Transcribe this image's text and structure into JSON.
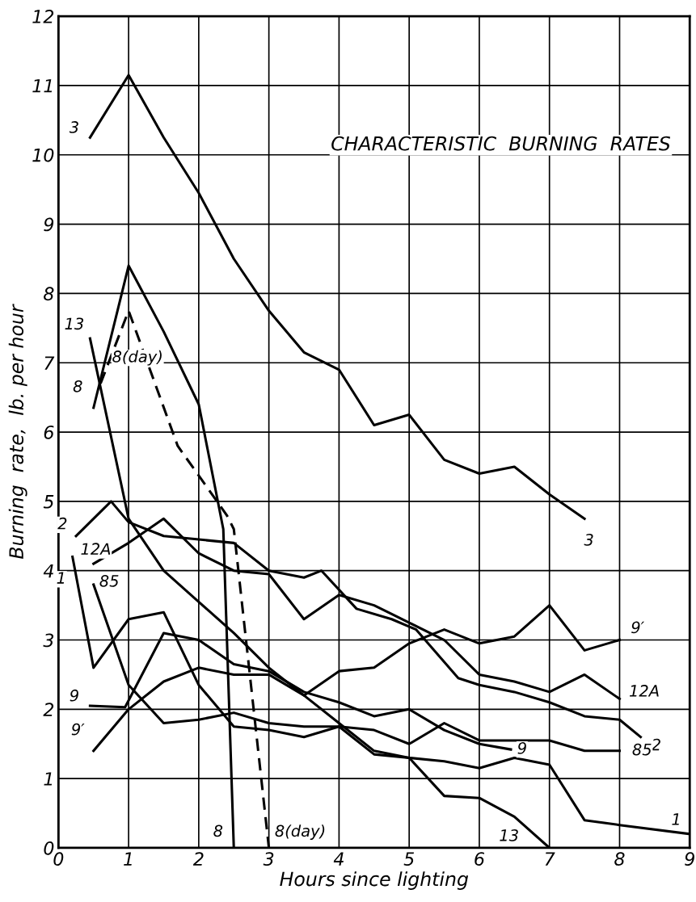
{
  "chart_data": {
    "type": "line",
    "title": "CHARACTERISTIC  BURNING  RATES",
    "xlabel": "Hours since lighting",
    "ylabel": "Burning  rate,  lb. per hour",
    "xlim": [
      0,
      9
    ],
    "ylim": [
      0,
      12
    ],
    "xticks": [
      0,
      1,
      2,
      3,
      4,
      5,
      6,
      7,
      8,
      9
    ],
    "yticks": [
      0,
      1,
      2,
      3,
      4,
      5,
      6,
      7,
      8,
      9,
      10,
      11,
      12
    ],
    "grid": true,
    "marker": "none",
    "series": [
      {
        "name": "3",
        "color": "#000000",
        "line_style": "solid",
        "x": [
          0.45,
          1,
          1.5,
          2,
          2.5,
          3,
          3.5,
          4,
          4.5,
          5,
          5.5,
          6,
          6.5,
          7,
          7.5
        ],
        "values": [
          10.25,
          11.15,
          10.25,
          9.45,
          8.5,
          7.75,
          7.15,
          6.9,
          6.1,
          6.25,
          5.6,
          5.4,
          5.5,
          5.1,
          4.75
        ]
      },
      {
        "name": "8",
        "color": "#000000",
        "line_style": "solid",
        "x": [
          0.5,
          1,
          1.5,
          2,
          2.35,
          2.5
        ],
        "values": [
          6.35,
          8.4,
          7.45,
          6.4,
          4.6,
          0
        ]
      },
      {
        "name": "8(day)",
        "color": "#000000",
        "line_style": "dashed",
        "x": [
          0.6,
          1,
          1.7,
          2.4,
          2.5,
          3
        ],
        "values": [
          6.7,
          7.75,
          5.8,
          4.8,
          4.6,
          0
        ]
      },
      {
        "name": "13",
        "color": "#000000",
        "line_style": "solid",
        "x": [
          0.45,
          1,
          1.5,
          2,
          2.5,
          3,
          3.5,
          4,
          4.5,
          5,
          5.5,
          6,
          6.5,
          7
        ],
        "values": [
          7.35,
          4.75,
          4.0,
          3.55,
          3.1,
          2.6,
          2.2,
          1.8,
          1.4,
          1.3,
          0.75,
          0.72,
          0.45,
          0
        ]
      },
      {
        "name": "2",
        "color": "#000000",
        "line_style": "solid",
        "x": [
          0.25,
          0.75,
          1,
          1.5,
          2,
          2.5,
          3,
          3.5,
          3.75,
          4.25,
          4.75,
          5.1,
          5.7,
          6,
          6.5,
          7,
          7.5,
          8,
          8.3
        ],
        "values": [
          4.5,
          5.0,
          4.7,
          4.5,
          4.45,
          4.4,
          4.0,
          3.9,
          4.0,
          3.45,
          3.3,
          3.15,
          2.45,
          2.35,
          2.25,
          2.1,
          1.9,
          1.85,
          1.6
        ]
      },
      {
        "name": "12A",
        "color": "#000000",
        "line_style": "solid",
        "x": [
          0.5,
          1,
          1.5,
          2,
          2.5,
          3,
          3.5,
          4,
          4.5,
          5,
          5.5,
          6,
          6.5,
          7,
          7.5,
          8
        ],
        "values": [
          4.1,
          4.4,
          4.75,
          4.25,
          4.0,
          3.95,
          3.3,
          3.65,
          3.5,
          3.25,
          3.0,
          2.5,
          2.4,
          2.25,
          2.5,
          2.15
        ]
      },
      {
        "name": "1",
        "color": "#000000",
        "line_style": "solid",
        "x": [
          0.2,
          0.5,
          1,
          1.5,
          2,
          2.5,
          3,
          3.5,
          4,
          4.5,
          5,
          5.5,
          6,
          6.5,
          7,
          7.5,
          8,
          9
        ],
        "values": [
          4.2,
          2.6,
          3.3,
          3.4,
          2.35,
          1.75,
          1.7,
          1.6,
          1.75,
          1.35,
          1.3,
          1.25,
          1.15,
          1.3,
          1.2,
          0.4,
          0.33,
          0.2
        ]
      },
      {
        "name": "85",
        "color": "#000000",
        "line_style": "solid",
        "x": [
          0.5,
          1,
          1.5,
          2,
          2.5,
          3,
          3.5,
          4,
          4.5,
          5,
          5.5,
          6,
          6.5,
          7,
          7.5,
          8
        ],
        "values": [
          3.8,
          2.35,
          1.8,
          1.85,
          1.95,
          1.8,
          1.75,
          1.75,
          1.7,
          1.5,
          1.8,
          1.55,
          1.55,
          1.55,
          1.4,
          1.4
        ]
      },
      {
        "name": "9",
        "color": "#000000",
        "line_style": "solid",
        "x": [
          0.45,
          0.95,
          1.5,
          2,
          2.5,
          3,
          3.5,
          4,
          4.5,
          5,
          5.5,
          6,
          6.45
        ],
        "values": [
          2.05,
          2.03,
          3.1,
          3.0,
          2.65,
          2.55,
          2.25,
          2.1,
          1.9,
          2.0,
          1.7,
          1.5,
          1.42
        ]
      },
      {
        "name": "9′",
        "color": "#000000",
        "line_style": "solid",
        "x": [
          0.5,
          1,
          1.5,
          2,
          2.5,
          3,
          3.5,
          4,
          4.5,
          5,
          5.5,
          6,
          6.5,
          7,
          7.5,
          8
        ],
        "values": [
          1.4,
          2.0,
          2.4,
          2.6,
          2.5,
          2.5,
          2.2,
          2.55,
          2.6,
          2.95,
          3.15,
          2.95,
          3.05,
          3.5,
          2.85,
          3.0
        ]
      }
    ]
  }
}
